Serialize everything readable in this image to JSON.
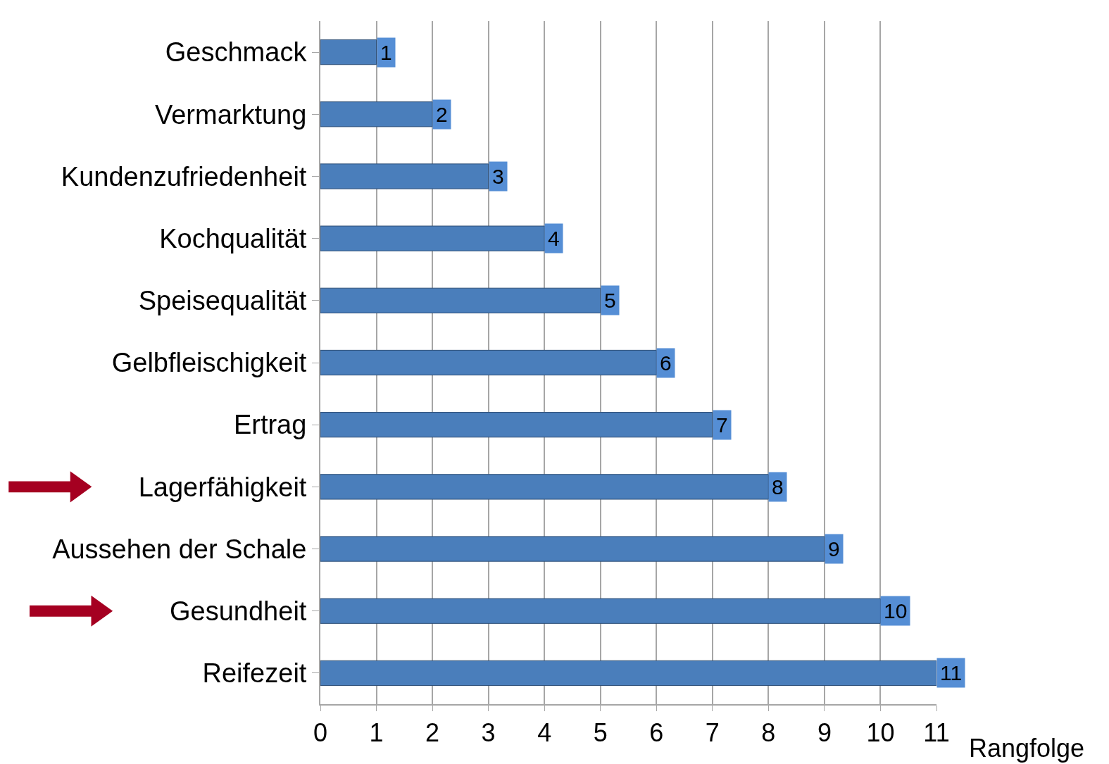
{
  "chart_data": {
    "type": "bar",
    "orientation": "horizontal",
    "xlabel": "Rangfolge",
    "categories": [
      "Geschmack",
      "Vermarktung",
      "Kundenzufriedenheit",
      "Kochqualität",
      "Speisequalität",
      "Gelbfleischigkeit",
      "Ertrag",
      "Lagerfähigkeit",
      "Aussehen der Schale",
      "Gesundheit",
      "Reifezeit"
    ],
    "values": [
      1,
      2,
      3,
      4,
      5,
      6,
      7,
      8,
      9,
      10,
      11
    ],
    "color": "#4a7ebb",
    "xlim": [
      0,
      11
    ],
    "xticks": [
      0,
      1,
      2,
      3,
      4,
      5,
      6,
      7,
      8,
      9,
      10,
      11
    ],
    "grid": "x",
    "data_labels": true
  }
}
